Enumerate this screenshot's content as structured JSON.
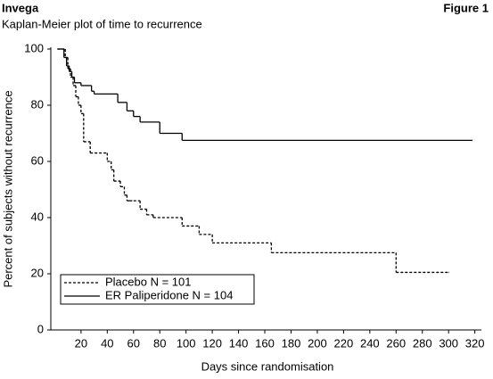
{
  "chart_data": {
    "type": "step",
    "title": "Invega",
    "subtitle": "Kaplan-Meier plot of time to recurrence",
    "figure_label": "Figure 1",
    "x_label": "Days since randomisation",
    "y_label": "Percent of subjects without recurrence",
    "xlim": [
      -3,
      325
    ],
    "ylim": [
      0,
      100
    ],
    "xticks": [
      20,
      40,
      60,
      80,
      100,
      120,
      140,
      160,
      180,
      200,
      220,
      240,
      260,
      280,
      300,
      320
    ],
    "yticks": [
      0,
      20,
      40,
      60,
      80,
      100
    ],
    "legend": "lower left",
    "series": [
      {
        "name": "Placebo N = 101",
        "color": "#000000",
        "dash": true,
        "x": [
          2,
          8,
          10,
          12,
          14,
          16,
          18,
          20,
          22,
          27,
          40,
          43,
          45,
          50,
          53,
          55,
          57,
          60,
          65,
          70,
          75,
          97,
          110,
          120,
          165,
          260,
          300
        ],
        "values": [
          100,
          97,
          93,
          90,
          87,
          83,
          80,
          77,
          67,
          63,
          60,
          57,
          53,
          51,
          48,
          46,
          46,
          46,
          43,
          41,
          40,
          37,
          34,
          31,
          27.5,
          20.5,
          20.5
        ]
      },
      {
        "name": "ER Paliperidone N = 104",
        "color": "#000000",
        "dash": false,
        "x": [
          2,
          7,
          9,
          11,
          13,
          15,
          20,
          28,
          30,
          48,
          55,
          60,
          65,
          80,
          97,
          318
        ],
        "values": [
          100,
          97,
          94,
          92,
          90,
          88,
          87,
          85,
          84,
          81,
          78,
          76,
          74,
          70,
          67.5,
          67.5
        ]
      }
    ]
  }
}
